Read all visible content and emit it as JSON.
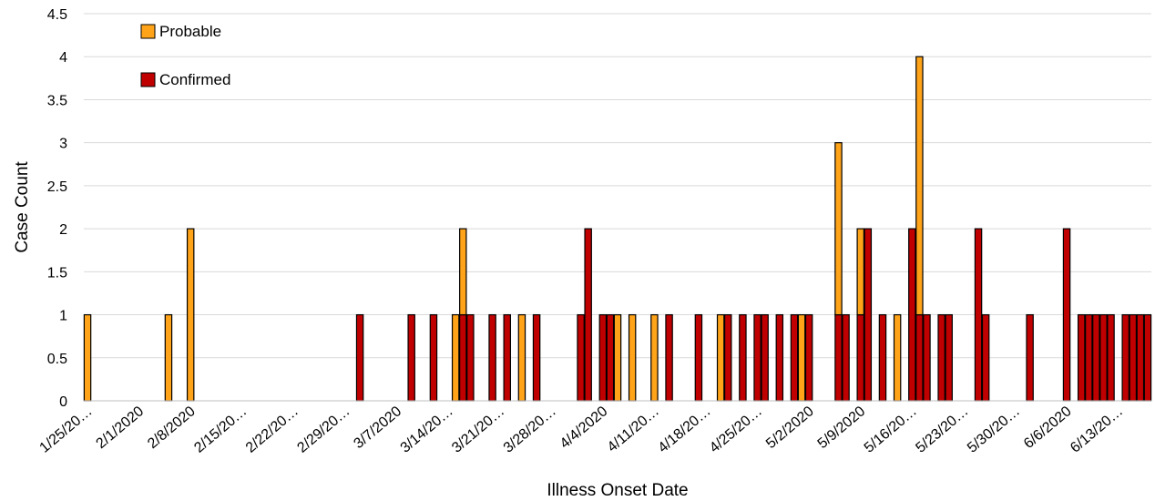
{
  "chart_data": {
    "type": "bar",
    "stacked": true,
    "xlabel": "Illness Onset Date",
    "ylabel": "Case Count",
    "ylim": [
      0,
      4.5
    ],
    "y_ticks": [
      "0",
      "0.5",
      "1",
      "1.5",
      "2",
      "2.5",
      "3",
      "3.5",
      "4",
      "4.5"
    ],
    "x_start": "1/25/2020",
    "x_end": "6/17/2020",
    "x_tick_labels": [
      "1/25/20…",
      "2/1/2020",
      "2/8/2020",
      "2/15/20…",
      "2/22/20…",
      "2/29/20…",
      "3/7/2020",
      "3/14/20…",
      "3/21/20…",
      "3/28/20…",
      "4/4/2020",
      "4/11/20…",
      "4/18/20…",
      "4/25/20…",
      "5/2/2020",
      "5/9/2020",
      "5/16/20…",
      "5/23/20…",
      "5/30/20…",
      "6/6/2020",
      "6/13/20…"
    ],
    "grid": true,
    "legend_position": "top-left",
    "series": [
      {
        "name": "Confirmed",
        "color": "#C00000",
        "points": [
          [
            "3/2/2020",
            1
          ],
          [
            "3/9/2020",
            1
          ],
          [
            "3/12/2020",
            1
          ],
          [
            "3/16/2020",
            1
          ],
          [
            "3/17/2020",
            1
          ],
          [
            "3/20/2020",
            1
          ],
          [
            "3/22/2020",
            1
          ],
          [
            "3/26/2020",
            1
          ],
          [
            "4/1/2020",
            1
          ],
          [
            "4/2/2020",
            2
          ],
          [
            "4/4/2020",
            1
          ],
          [
            "4/5/2020",
            1
          ],
          [
            "4/13/2020",
            1
          ],
          [
            "4/17/2020",
            1
          ],
          [
            "4/21/2020",
            1
          ],
          [
            "4/23/2020",
            1
          ],
          [
            "4/25/2020",
            1
          ],
          [
            "4/26/2020",
            1
          ],
          [
            "4/28/2020",
            1
          ],
          [
            "4/30/2020",
            1
          ],
          [
            "5/2/2020",
            1
          ],
          [
            "5/6/2020",
            1
          ],
          [
            "5/7/2020",
            1
          ],
          [
            "5/9/2020",
            1
          ],
          [
            "5/10/2020",
            2
          ],
          [
            "5/12/2020",
            1
          ],
          [
            "5/16/2020",
            2
          ],
          [
            "5/17/2020",
            1
          ],
          [
            "5/18/2020",
            1
          ],
          [
            "5/20/2020",
            1
          ],
          [
            "5/21/2020",
            1
          ],
          [
            "5/25/2020",
            2
          ],
          [
            "5/26/2020",
            1
          ],
          [
            "6/1/2020",
            1
          ],
          [
            "6/6/2020",
            2
          ],
          [
            "6/8/2020",
            1
          ],
          [
            "6/9/2020",
            1
          ],
          [
            "6/10/2020",
            1
          ],
          [
            "6/11/2020",
            1
          ],
          [
            "6/12/2020",
            1
          ],
          [
            "6/14/2020",
            1
          ],
          [
            "6/15/2020",
            1
          ],
          [
            "6/16/2020",
            1
          ],
          [
            "6/17/2020",
            1
          ]
        ]
      },
      {
        "name": "Probable",
        "color": "#FFA319",
        "points": [
          [
            "1/25/2020",
            1
          ],
          [
            "2/5/2020",
            1
          ],
          [
            "2/8/2020",
            2
          ],
          [
            "3/15/2020",
            1
          ],
          [
            "3/16/2020",
            1
          ],
          [
            "3/24/2020",
            1
          ],
          [
            "4/6/2020",
            1
          ],
          [
            "4/8/2020",
            1
          ],
          [
            "4/11/2020",
            1
          ],
          [
            "4/20/2020",
            1
          ],
          [
            "5/1/2020",
            1
          ],
          [
            "5/6/2020",
            2
          ],
          [
            "5/9/2020",
            1
          ],
          [
            "5/14/2020",
            1
          ],
          [
            "5/17/2020",
            3
          ]
        ]
      }
    ]
  }
}
